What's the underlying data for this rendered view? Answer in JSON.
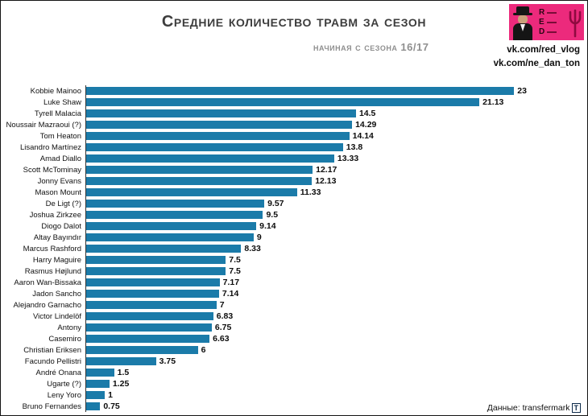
{
  "header": {
    "title": "Средние количество травм за сезон",
    "subtitle": "начиная с сезона 16/17",
    "links": [
      "vk.com/red_vlog",
      "vk.com/ne_dan_ton"
    ],
    "logo": {
      "letters": [
        "R",
        "E",
        "D"
      ],
      "background_color": "#ec2a7c"
    }
  },
  "footer": {
    "source_label": "Данные: transfermark",
    "source_logo": "T"
  },
  "chart_data": {
    "type": "bar",
    "orientation": "horizontal",
    "title": "Средние количество травм за сезон",
    "subtitle": "начиная с сезона 16/17",
    "categories": [
      "Kobbie Mainoo",
      "Luke Shaw",
      "Tyrell Malacia",
      "Noussair Mazraoui (?)",
      "Tom Heaton",
      "Lisandro Martínez",
      "Amad Diallo",
      "Scott McTominay",
      "Jonny Evans",
      "Mason Mount",
      "De Ligt (?)",
      "Joshua Zirkzee",
      "Diogo Dalot",
      "Altay Bayındır",
      "Marcus Rashford",
      "Harry Maguire",
      "Rasmus Højlund",
      "Aaron Wan-Bissaka",
      "Jadon Sancho",
      "Alejandro Garnacho",
      "Victor Lindelöf",
      "Antony",
      "Casemiro",
      "Christian Eriksen",
      "Facundo Pellistri",
      "André Onana",
      "Ugarte (?)",
      "Leny Yoro",
      "Bruno Fernandes"
    ],
    "values": [
      23,
      21.13,
      14.5,
      14.29,
      14.14,
      13.8,
      13.33,
      12.17,
      12.13,
      11.33,
      9.57,
      9.5,
      9.14,
      9,
      8.33,
      7.5,
      7.5,
      7.17,
      7.14,
      7,
      6.83,
      6.75,
      6.63,
      6,
      3.75,
      1.5,
      1.25,
      1,
      0.75
    ],
    "bar_color": "#1b7ba9",
    "value_label_color": "#0d0d0d",
    "xlim": [
      0,
      23
    ],
    "grid": false,
    "legend": false,
    "value_labels": true,
    "source": "transfermarkt"
  }
}
